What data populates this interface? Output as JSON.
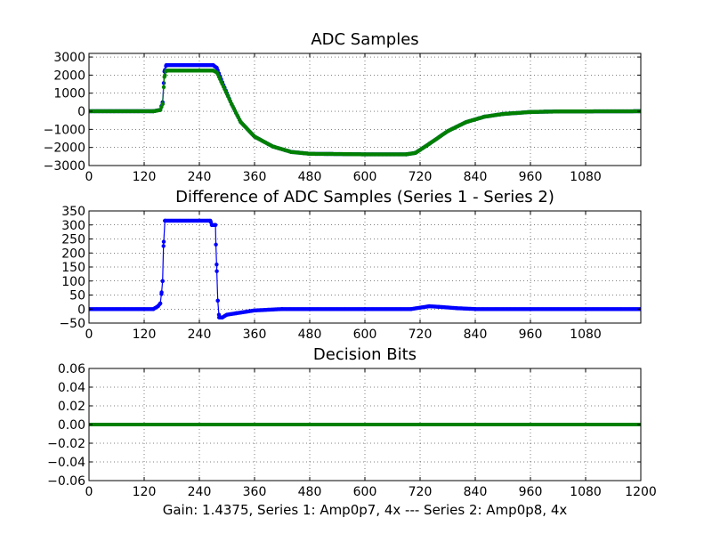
{
  "figure": {
    "caption": "Gain: 1.4375, Series 1: Amp0p7, 4x --- Series 2: Amp0p8, 4x"
  },
  "colors": {
    "series1": "#0000ff",
    "series2": "#008000"
  },
  "chart_data": [
    {
      "type": "line",
      "title": "ADC Samples",
      "xlim": [
        0,
        1200
      ],
      "ylim": [
        -3000,
        3200
      ],
      "xticks": [
        0,
        120,
        240,
        360,
        480,
        600,
        720,
        840,
        960,
        1080
      ],
      "yticks": [
        -3000,
        -2000,
        -1000,
        0,
        1000,
        2000,
        3000
      ],
      "grid": true,
      "series": [
        {
          "name": "Series 1",
          "color_key": "series1",
          "points": [
            [
              0,
              0
            ],
            [
              140,
              0
            ],
            [
              155,
              80
            ],
            [
              160,
              500
            ],
            [
              164,
              2200
            ],
            [
              168,
              2550
            ],
            [
              270,
              2550
            ],
            [
              278,
              2400
            ],
            [
              290,
              1600
            ],
            [
              310,
              400
            ],
            [
              330,
              -600
            ],
            [
              360,
              -1400
            ],
            [
              400,
              -1950
            ],
            [
              440,
              -2250
            ],
            [
              480,
              -2350
            ],
            [
              600,
              -2380
            ],
            [
              690,
              -2380
            ],
            [
              710,
              -2300
            ],
            [
              740,
              -1800
            ],
            [
              780,
              -1100
            ],
            [
              820,
              -600
            ],
            [
              860,
              -300
            ],
            [
              900,
              -150
            ],
            [
              960,
              -40
            ],
            [
              1020,
              -10
            ],
            [
              1200,
              0
            ]
          ]
        },
        {
          "name": "Series 2",
          "color_key": "series2",
          "points": [
            [
              0,
              0
            ],
            [
              140,
              0
            ],
            [
              155,
              70
            ],
            [
              160,
              400
            ],
            [
              164,
              1900
            ],
            [
              168,
              2250
            ],
            [
              270,
              2250
            ],
            [
              278,
              2150
            ],
            [
              290,
              1500
            ],
            [
              310,
              400
            ],
            [
              330,
              -600
            ],
            [
              360,
              -1400
            ],
            [
              400,
              -1950
            ],
            [
              440,
              -2250
            ],
            [
              480,
              -2350
            ],
            [
              600,
              -2380
            ],
            [
              690,
              -2380
            ],
            [
              710,
              -2300
            ],
            [
              740,
              -1800
            ],
            [
              780,
              -1100
            ],
            [
              820,
              -600
            ],
            [
              860,
              -300
            ],
            [
              900,
              -150
            ],
            [
              960,
              -40
            ],
            [
              1020,
              -10
            ],
            [
              1200,
              0
            ]
          ]
        }
      ]
    },
    {
      "type": "line",
      "title": "Difference of ADC Samples (Series 1 - Series 2)",
      "xlim": [
        0,
        1200
      ],
      "ylim": [
        -50,
        350
      ],
      "xticks": [
        0,
        120,
        240,
        360,
        480,
        600,
        720,
        840,
        960,
        1080
      ],
      "yticks": [
        -50,
        0,
        50,
        100,
        150,
        200,
        250,
        300,
        350
      ],
      "grid": true,
      "series": [
        {
          "name": "Series 1 - Series 2",
          "color_key": "series1",
          "points": [
            [
              0,
              0
            ],
            [
              140,
              0
            ],
            [
              150,
              10
            ],
            [
              155,
              20
            ],
            [
              158,
              60
            ],
            [
              160,
              100
            ],
            [
              162,
              225
            ],
            [
              165,
              315
            ],
            [
              264,
              315
            ],
            [
              267,
              300
            ],
            [
              275,
              300
            ],
            [
              276,
              230
            ],
            [
              278,
              135
            ],
            [
              280,
              30
            ],
            [
              283,
              -30
            ],
            [
              290,
              -30
            ],
            [
              300,
              -20
            ],
            [
              320,
              -15
            ],
            [
              360,
              -5
            ],
            [
              420,
              0
            ],
            [
              600,
              0
            ],
            [
              700,
              0
            ],
            [
              720,
              5
            ],
            [
              740,
              10
            ],
            [
              760,
              8
            ],
            [
              800,
              3
            ],
            [
              840,
              0
            ],
            [
              1200,
              0
            ]
          ]
        }
      ]
    },
    {
      "type": "line",
      "title": "Decision Bits",
      "xlim": [
        0,
        1200
      ],
      "ylim": [
        -0.06,
        0.06
      ],
      "xticks": [
        0,
        120,
        240,
        360,
        480,
        600,
        720,
        840,
        960,
        1080,
        1200
      ],
      "yticks": [
        -0.06,
        -0.04,
        -0.02,
        0.0,
        0.02,
        0.04,
        0.06
      ],
      "grid": true,
      "series": [
        {
          "name": "Series 1",
          "color_key": "series1",
          "points": [
            [
              0,
              0
            ],
            [
              1200,
              0
            ]
          ]
        },
        {
          "name": "Series 2",
          "color_key": "series2",
          "points": [
            [
              0,
              0
            ],
            [
              1200,
              0
            ]
          ]
        }
      ]
    }
  ]
}
